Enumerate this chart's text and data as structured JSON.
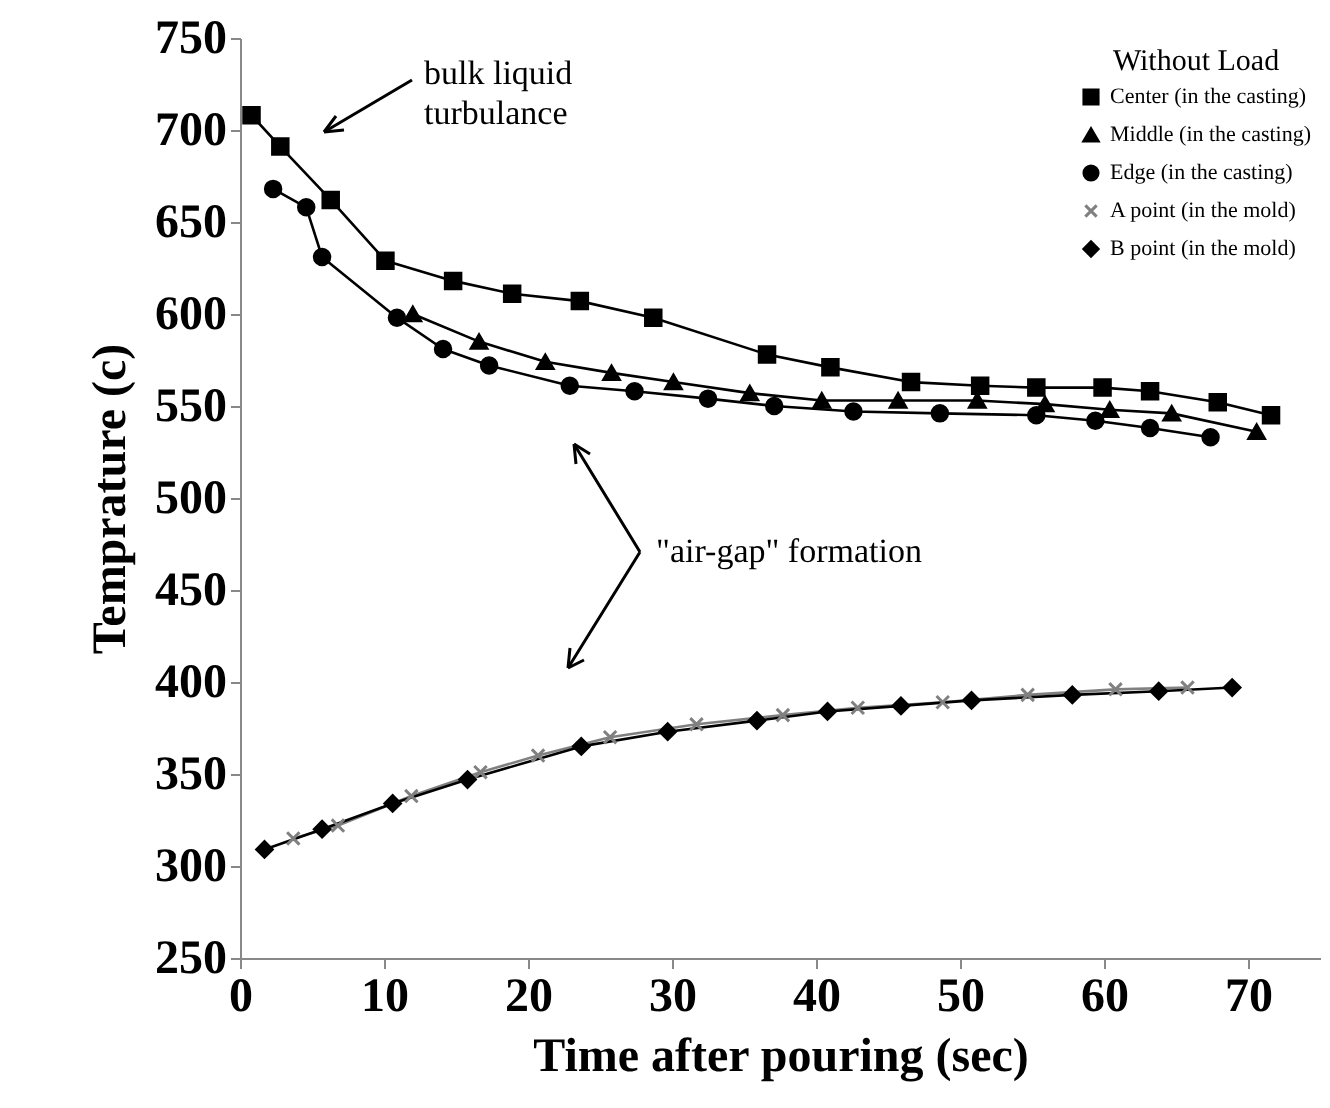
{
  "chart_data": {
    "type": "line",
    "xlabel": "Time after pouring (sec)",
    "ylabel": "Temprature (c)",
    "legend_title": "Without Load",
    "xlim": [
      0,
      75
    ],
    "xticks": [
      0,
      10,
      20,
      30,
      40,
      50,
      60,
      70
    ],
    "ylim": [
      250,
      750
    ],
    "yticks": [
      250,
      300,
      350,
      400,
      450,
      500,
      550,
      600,
      650,
      700,
      750
    ],
    "grid": false,
    "legend": "top right",
    "annotations": [
      "bulk liquid turbulance",
      "\"air-gap\" formation"
    ],
    "series": [
      {
        "name": "Center (in the casting)",
        "color": "#000000",
        "marker": "square",
        "x": [
          0.8,
          2.8,
          6.3,
          10.1,
          14.8,
          18.9,
          23.6,
          28.7,
          36.6,
          41,
          46.6,
          51.4,
          55.3,
          59.9,
          63.2,
          67.9,
          71.6
        ],
        "values": [
          708,
          691,
          662,
          629,
          618,
          611,
          607,
          598,
          578,
          571,
          563,
          561,
          560,
          560,
          558,
          552,
          545
        ]
      },
      {
        "name": "Middle (in the casting)",
        "color": "#000000",
        "marker": "triangle",
        "x": [
          12,
          16.6,
          21.2,
          25.8,
          30.1,
          35.4,
          40.4,
          45.7,
          51.2,
          55.9,
          60.4,
          64.7,
          70.6
        ],
        "values": [
          600,
          585,
          574,
          568,
          563,
          557,
          553,
          553,
          553,
          551,
          548,
          546,
          536
        ]
      },
      {
        "name": "Edge (in the casting)",
        "color": "#000000",
        "marker": "circle",
        "x": [
          2.3,
          4.6,
          5.7,
          10.9,
          14.1,
          17.3,
          22.9,
          27.4,
          32.5,
          37.1,
          42.6,
          48.6,
          55.3,
          59.4,
          63.2,
          67.4
        ],
        "values": [
          668,
          658,
          631,
          598,
          581,
          572,
          561,
          558,
          554,
          550,
          547,
          546,
          545,
          542,
          538,
          533
        ]
      },
      {
        "name": "A point (in the mold)",
        "color": "#808080",
        "marker": "cross",
        "x": [
          3.7,
          6.8,
          11.9,
          16.7,
          20.7,
          25.7,
          31.7,
          37.7,
          42.9,
          48.8,
          54.7,
          60.8,
          65.8
        ],
        "values": [
          315,
          322,
          338,
          351,
          360,
          370,
          377,
          382,
          386,
          389,
          393,
          396,
          397
        ]
      },
      {
        "name": "B point (in the mold)",
        "color": "#000000",
        "marker": "diamond",
        "x": [
          1.7,
          5.7,
          10.6,
          15.8,
          23.7,
          29.7,
          35.9,
          40.8,
          45.9,
          50.8,
          57.8,
          63.8,
          68.9
        ],
        "values": [
          309,
          320,
          334,
          347,
          365,
          373,
          379,
          384,
          387,
          390,
          393,
          395,
          397
        ]
      }
    ]
  }
}
